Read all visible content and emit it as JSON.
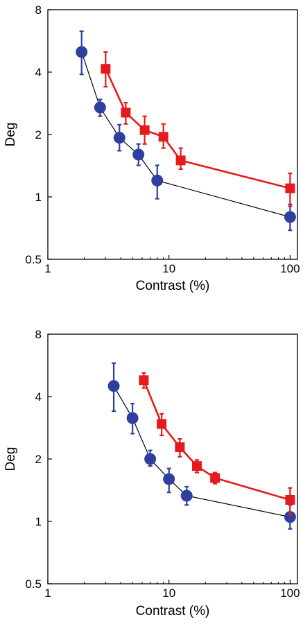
{
  "chart_data": [
    {
      "type": "line",
      "xlabel": "Contrast (%)",
      "ylabel": "Deg",
      "xscale": "log",
      "yscale": "log",
      "xlim": [
        1,
        115
      ],
      "ylim": [
        0.5,
        8
      ],
      "xticks": [
        {
          "value": 1,
          "label": "1"
        },
        {
          "value": 10,
          "label": "10"
        },
        {
          "value": 100,
          "label": "100"
        }
      ],
      "yticks": [
        {
          "value": 0.5,
          "label": "0.5"
        },
        {
          "value": 1,
          "label": "1"
        },
        {
          "value": 2,
          "label": "2"
        },
        {
          "value": 4,
          "label": "4"
        },
        {
          "value": 8,
          "label": "8"
        }
      ],
      "series": [
        {
          "marker": "circle",
          "color": "#2f3f9e",
          "line_color": "#000000",
          "points": [
            {
              "x": 1.9,
              "y": 5.0,
              "lo": 3.9,
              "hi": 6.3
            },
            {
              "x": 2.7,
              "y": 2.7,
              "lo": 2.45,
              "hi": 2.95
            },
            {
              "x": 3.9,
              "y": 1.93,
              "lo": 1.67,
              "hi": 2.23
            },
            {
              "x": 5.6,
              "y": 1.6,
              "lo": 1.42,
              "hi": 1.8
            },
            {
              "x": 8.0,
              "y": 1.2,
              "lo": 0.98,
              "hi": 1.42
            },
            {
              "x": 100,
              "y": 0.8,
              "lo": 0.69,
              "hi": 0.92
            }
          ]
        },
        {
          "marker": "square",
          "color": "#e41a1c",
          "line_color": "#e41a1c",
          "points": [
            {
              "x": 3.0,
              "y": 4.15,
              "lo": 3.4,
              "hi": 5.0
            },
            {
              "x": 4.4,
              "y": 2.55,
              "lo": 2.25,
              "hi": 2.85
            },
            {
              "x": 6.3,
              "y": 2.1,
              "lo": 1.8,
              "hi": 2.45
            },
            {
              "x": 9.0,
              "y": 1.95,
              "lo": 1.72,
              "hi": 2.25
            },
            {
              "x": 12.5,
              "y": 1.5,
              "lo": 1.36,
              "hi": 1.72
            },
            {
              "x": 100,
              "y": 1.1,
              "lo": 0.9,
              "hi": 1.3
            }
          ]
        }
      ]
    },
    {
      "type": "line",
      "xlabel": "Contrast (%)",
      "ylabel": "Deg",
      "xscale": "log",
      "yscale": "log",
      "xlim": [
        1,
        115
      ],
      "ylim": [
        0.5,
        8
      ],
      "xticks": [
        {
          "value": 1,
          "label": "1"
        },
        {
          "value": 10,
          "label": "10"
        },
        {
          "value": 100,
          "label": "100"
        }
      ],
      "yticks": [
        {
          "value": 0.5,
          "label": "0.5"
        },
        {
          "value": 1,
          "label": "1"
        },
        {
          "value": 2,
          "label": "2"
        },
        {
          "value": 4,
          "label": "4"
        },
        {
          "value": 8,
          "label": "8"
        }
      ],
      "series": [
        {
          "marker": "circle",
          "color": "#2f3f9e",
          "line_color": "#000000",
          "points": [
            {
              "x": 3.5,
              "y": 4.5,
              "lo": 3.4,
              "hi": 5.8
            },
            {
              "x": 5.0,
              "y": 3.15,
              "lo": 2.65,
              "hi": 3.7
            },
            {
              "x": 7.0,
              "y": 2.0,
              "lo": 1.85,
              "hi": 2.2
            },
            {
              "x": 10.0,
              "y": 1.6,
              "lo": 1.38,
              "hi": 1.8
            },
            {
              "x": 14.0,
              "y": 1.33,
              "lo": 1.2,
              "hi": 1.47
            },
            {
              "x": 100,
              "y": 1.05,
              "lo": 0.92,
              "hi": 1.2
            }
          ]
        },
        {
          "marker": "square",
          "color": "#e41a1c",
          "line_color": "#e41a1c",
          "points": [
            {
              "x": 6.2,
              "y": 4.8,
              "lo": 4.4,
              "hi": 5.2
            },
            {
              "x": 8.7,
              "y": 2.95,
              "lo": 2.6,
              "hi": 3.3
            },
            {
              "x": 12.3,
              "y": 2.28,
              "lo": 2.05,
              "hi": 2.5
            },
            {
              "x": 17.0,
              "y": 1.85,
              "lo": 1.72,
              "hi": 1.98
            },
            {
              "x": 24.0,
              "y": 1.62,
              "lo": 1.52,
              "hi": 1.72
            },
            {
              "x": 100,
              "y": 1.27,
              "lo": 1.08,
              "hi": 1.45
            }
          ]
        }
      ]
    }
  ]
}
